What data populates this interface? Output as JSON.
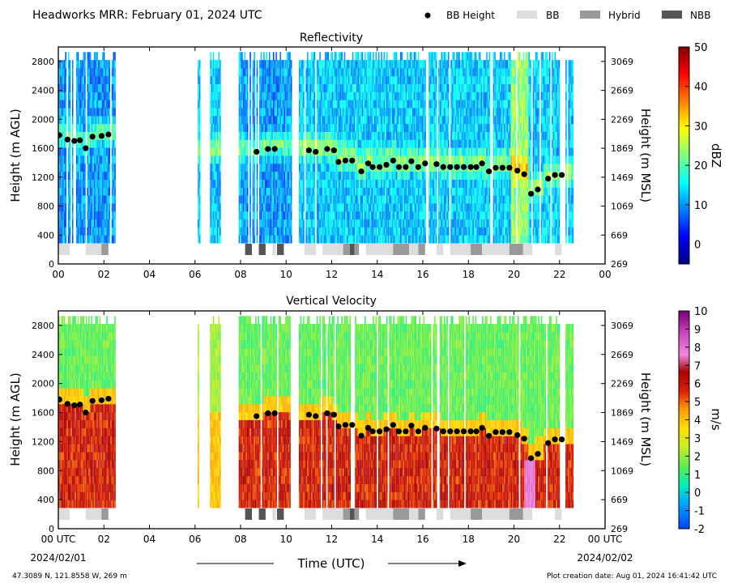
{
  "header": {
    "title": "Headworks MRR:  February 01, 2024 UTC",
    "legend": [
      {
        "label": "BB Height",
        "marker": "dot",
        "color": "#000000"
      },
      {
        "label": "BB",
        "marker": "box",
        "color": "#dddddd"
      },
      {
        "label": "Hybrid",
        "marker": "box",
        "color": "#999999"
      },
      {
        "label": "NBB",
        "marker": "box",
        "color": "#555555"
      }
    ]
  },
  "footer": {
    "location": "47.3089 N, 121.8558 W, 269 m",
    "creation": "Plot creation date: Aug 01, 2024 16:41:42 UTC",
    "xlabel": "Time (UTC)",
    "start_date": "2024/02/01",
    "end_date": "2024/02/02"
  },
  "chart_data": [
    {
      "type": "heatmap",
      "title": "Reflectivity",
      "xlabel": "",
      "ylabel": "Height (m AGL)",
      "ylabel_right": "Height (m MSL)",
      "xlim": [
        0,
        24
      ],
      "ylim": [
        0,
        3000
      ],
      "x_ticks": [
        "00",
        "02",
        "04",
        "06",
        "08",
        "10",
        "12",
        "14",
        "16",
        "18",
        "20",
        "22",
        "00"
      ],
      "y_ticks": [
        0,
        400,
        800,
        1200,
        1600,
        2000,
        2400,
        2800
      ],
      "y_ticks_right": [
        269,
        669,
        1069,
        1469,
        1869,
        2269,
        2669,
        3069
      ],
      "colorbar": {
        "label": "dBZ",
        "min": -5,
        "max": 50,
        "ticks": [
          0,
          10,
          20,
          30,
          40,
          50
        ],
        "colormap": "jet"
      },
      "grid": false
    },
    {
      "type": "heatmap",
      "title": "Vertical Velocity",
      "xlabel": "Time (UTC)",
      "ylabel": "Height (m AGL)",
      "ylabel_right": "Height (m MSL)",
      "xlim": [
        0,
        24
      ],
      "ylim": [
        0,
        3000
      ],
      "x_ticks": [
        "00 UTC",
        "02",
        "04",
        "06",
        "08",
        "10",
        "12",
        "14",
        "16",
        "18",
        "20",
        "22",
        "00 UTC"
      ],
      "y_ticks": [
        0,
        400,
        800,
        1200,
        1600,
        2000,
        2400,
        2800
      ],
      "y_ticks_right": [
        269,
        669,
        1069,
        1469,
        1869,
        2269,
        2669,
        3069
      ],
      "colorbar": {
        "label": "m/s",
        "min": -2,
        "max": 10,
        "ticks": [
          -2,
          -1,
          0,
          1,
          2,
          3,
          4,
          5,
          6,
          7,
          8,
          9,
          10
        ],
        "colormap": "velocity"
      },
      "grid": false
    }
  ],
  "bb_height": [
    {
      "t": 0.05,
      "h": 1780
    },
    {
      "t": 0.4,
      "h": 1720
    },
    {
      "t": 0.7,
      "h": 1700
    },
    {
      "t": 0.95,
      "h": 1710
    },
    {
      "t": 1.2,
      "h": 1600
    },
    {
      "t": 1.5,
      "h": 1760
    },
    {
      "t": 1.9,
      "h": 1770
    },
    {
      "t": 2.2,
      "h": 1790
    },
    {
      "t": 8.7,
      "h": 1550
    },
    {
      "t": 9.2,
      "h": 1590
    },
    {
      "t": 9.5,
      "h": 1590
    },
    {
      "t": 11.0,
      "h": 1570
    },
    {
      "t": 11.3,
      "h": 1550
    },
    {
      "t": 11.8,
      "h": 1590
    },
    {
      "t": 12.1,
      "h": 1570
    },
    {
      "t": 12.3,
      "h": 1410
    },
    {
      "t": 12.6,
      "h": 1430
    },
    {
      "t": 12.9,
      "h": 1430
    },
    {
      "t": 13.3,
      "h": 1280
    },
    {
      "t": 13.6,
      "h": 1390
    },
    {
      "t": 13.8,
      "h": 1340
    },
    {
      "t": 14.1,
      "h": 1340
    },
    {
      "t": 14.4,
      "h": 1370
    },
    {
      "t": 14.7,
      "h": 1430
    },
    {
      "t": 14.95,
      "h": 1340
    },
    {
      "t": 15.25,
      "h": 1340
    },
    {
      "t": 15.5,
      "h": 1420
    },
    {
      "t": 15.8,
      "h": 1340
    },
    {
      "t": 16.1,
      "h": 1390
    },
    {
      "t": 16.6,
      "h": 1380
    },
    {
      "t": 16.9,
      "h": 1340
    },
    {
      "t": 17.2,
      "h": 1340
    },
    {
      "t": 17.5,
      "h": 1340
    },
    {
      "t": 17.8,
      "h": 1340
    },
    {
      "t": 18.1,
      "h": 1340
    },
    {
      "t": 18.35,
      "h": 1340
    },
    {
      "t": 18.6,
      "h": 1390
    },
    {
      "t": 18.9,
      "h": 1280
    },
    {
      "t": 19.2,
      "h": 1330
    },
    {
      "t": 19.5,
      "h": 1330
    },
    {
      "t": 19.8,
      "h": 1330
    },
    {
      "t": 20.15,
      "h": 1290
    },
    {
      "t": 20.45,
      "h": 1240
    },
    {
      "t": 20.75,
      "h": 970
    },
    {
      "t": 21.05,
      "h": 1030
    },
    {
      "t": 21.5,
      "h": 1180
    },
    {
      "t": 21.8,
      "h": 1230
    },
    {
      "t": 22.1,
      "h": 1230
    }
  ],
  "bb_type_segments": [
    {
      "start": 0.0,
      "end": 0.5,
      "type": "BB"
    },
    {
      "start": 1.2,
      "end": 1.9,
      "type": "BB"
    },
    {
      "start": 1.9,
      "end": 2.2,
      "type": "Hybrid"
    },
    {
      "start": 8.2,
      "end": 8.5,
      "type": "NBB"
    },
    {
      "start": 8.8,
      "end": 9.1,
      "type": "NBB"
    },
    {
      "start": 9.4,
      "end": 9.55,
      "type": "BB"
    },
    {
      "start": 9.6,
      "end": 9.9,
      "type": "NBB"
    },
    {
      "start": 10.8,
      "end": 11.3,
      "type": "BB"
    },
    {
      "start": 11.6,
      "end": 12.5,
      "type": "BB"
    },
    {
      "start": 12.5,
      "end": 12.8,
      "type": "Hybrid"
    },
    {
      "start": 12.8,
      "end": 13.0,
      "type": "NBB"
    },
    {
      "start": 13.0,
      "end": 13.2,
      "type": "Hybrid"
    },
    {
      "start": 13.5,
      "end": 14.7,
      "type": "BB"
    },
    {
      "start": 14.7,
      "end": 15.4,
      "type": "Hybrid"
    },
    {
      "start": 15.4,
      "end": 15.8,
      "type": "BB"
    },
    {
      "start": 15.8,
      "end": 16.1,
      "type": "Hybrid"
    },
    {
      "start": 16.6,
      "end": 16.9,
      "type": "BB"
    },
    {
      "start": 17.2,
      "end": 18.1,
      "type": "BB"
    },
    {
      "start": 18.1,
      "end": 18.6,
      "type": "Hybrid"
    },
    {
      "start": 18.6,
      "end": 19.8,
      "type": "BB"
    },
    {
      "start": 19.8,
      "end": 20.4,
      "type": "Hybrid"
    },
    {
      "start": 20.4,
      "end": 20.8,
      "type": "BB"
    },
    {
      "start": 21.8,
      "end": 22.1,
      "type": "BB"
    }
  ],
  "data_windows": [
    {
      "start": 0.0,
      "end": 2.5
    },
    {
      "start": 6.1,
      "end": 6.25
    },
    {
      "start": 6.6,
      "end": 7.1
    },
    {
      "start": 7.9,
      "end": 10.2
    },
    {
      "start": 10.5,
      "end": 22.0
    },
    {
      "start": 22.2,
      "end": 22.6
    }
  ]
}
